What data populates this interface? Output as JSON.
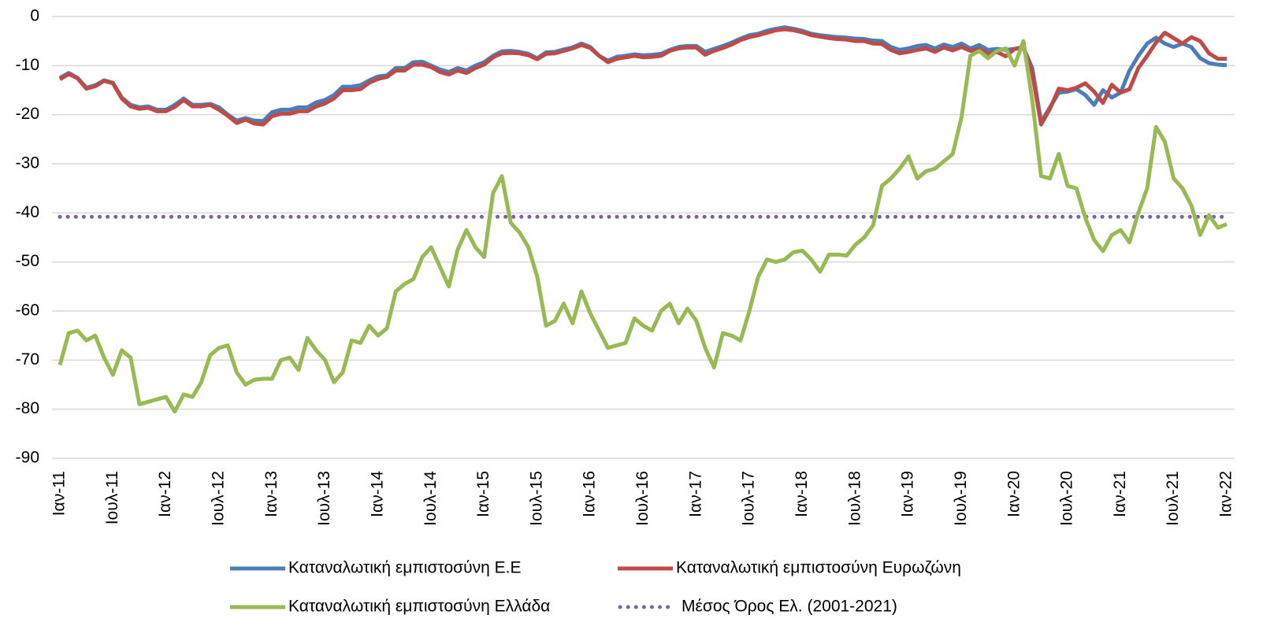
{
  "chart_data": {
    "type": "line",
    "categories": [
      "Ιαν-11",
      null,
      null,
      null,
      null,
      null,
      "Ιουλ-11",
      null,
      null,
      null,
      null,
      null,
      "Ιαν-12",
      null,
      null,
      null,
      null,
      null,
      "Ιουλ-12",
      null,
      null,
      null,
      null,
      null,
      "Ιαν-13",
      null,
      null,
      null,
      null,
      null,
      "Ιουλ-13",
      null,
      null,
      null,
      null,
      null,
      "Ιαν-14",
      null,
      null,
      null,
      null,
      null,
      "Ιουλ-14",
      null,
      null,
      null,
      null,
      null,
      "Ιαν-15",
      null,
      null,
      null,
      null,
      null,
      "Ιουλ-15",
      null,
      null,
      null,
      null,
      null,
      "Ιαν-16",
      null,
      null,
      null,
      null,
      null,
      "Ιουλ-16",
      null,
      null,
      null,
      null,
      null,
      "Ιαν-17",
      null,
      null,
      null,
      null,
      null,
      "Ιουλ-17",
      null,
      null,
      null,
      null,
      null,
      "Ιαν-18",
      null,
      null,
      null,
      null,
      null,
      "Ιουλ-18",
      null,
      null,
      null,
      null,
      null,
      "Ιαν-19",
      null,
      null,
      null,
      null,
      null,
      "Ιουλ-19",
      null,
      null,
      null,
      null,
      null,
      "Ιαν-20",
      null,
      null,
      null,
      null,
      null,
      "Ιουλ-20",
      null,
      null,
      null,
      null,
      null,
      "Ιαν-21",
      null,
      null,
      null,
      null,
      null,
      "Ιουλ-21",
      null,
      null,
      null,
      null,
      null,
      "Ιαν-22"
    ],
    "series": [
      {
        "name": "Καταναλωτική εμπιστοσύνη Ε.Ε",
        "color": "#4a7ebb",
        "values": [
          -12.5,
          -11.5,
          -12.5,
          -14.5,
          -14,
          -13,
          -13.5,
          -16.5,
          -18,
          -18.5,
          -18.3,
          -19,
          -19,
          -18,
          -16.7,
          -18,
          -18,
          -17.8,
          -18.5,
          -20,
          -21.2,
          -20.7,
          -21.2,
          -21.3,
          -19.5,
          -19,
          -19,
          -18.5,
          -18.5,
          -17.5,
          -17,
          -16,
          -14.3,
          -14.3,
          -14,
          -13,
          -12.2,
          -12,
          -10.5,
          -10.5,
          -9.3,
          -9.2,
          -10,
          -10.8,
          -11.3,
          -10.5,
          -11,
          -10,
          -9.3,
          -8,
          -7.1,
          -7,
          -7.2,
          -7.6,
          -8.5,
          -7.3,
          -7.2,
          -6.7,
          -6.3,
          -5.5,
          -6.2,
          -8,
          -9,
          -8.2,
          -8,
          -7.7,
          -7.9,
          -7.8,
          -7.6,
          -6.8,
          -6.2,
          -6,
          -6,
          -7.2,
          -6.6,
          -6,
          -5.3,
          -4.5,
          -3.8,
          -3.5,
          -2.9,
          -2.5,
          -2.2,
          -2.5,
          -2.9,
          -3.5,
          -3.8,
          -4,
          -4.2,
          -4.3,
          -4.5,
          -4.6,
          -4.9,
          -5,
          -6.2,
          -6.8,
          -6.5,
          -6,
          -5.8,
          -6.5,
          -5.7,
          -6.2,
          -5.5,
          -6.5,
          -5.8,
          -6.8,
          -6.6,
          -6.8,
          -6.6,
          -6.3,
          -10.5,
          -21.5,
          -18.5,
          -15.5,
          -15.3,
          -14.8,
          -16,
          -18,
          -15,
          -16.5,
          -15.5,
          -11,
          -8,
          -5.5,
          -4.3,
          -5.5,
          -6.2,
          -5.5,
          -6.2,
          -8.5,
          -9.5,
          -9.8,
          -9.9
        ]
      },
      {
        "name": "Καταναλωτική εμπιστοσύνη Ευρωζώνη",
        "color": "#be4b48",
        "values": [
          -12.8,
          -11.7,
          -12.6,
          -14.7,
          -14.2,
          -13.1,
          -13.6,
          -16.7,
          -18.3,
          -18.8,
          -18.6,
          -19.3,
          -19.3,
          -18.4,
          -17,
          -18.3,
          -18.3,
          -18,
          -19,
          -20.2,
          -21.7,
          -21,
          -21.8,
          -22,
          -20.3,
          -19.8,
          -19.8,
          -19.3,
          -19.3,
          -18.3,
          -17.7,
          -16.7,
          -15,
          -15,
          -14.8,
          -13.5,
          -12.7,
          -12.3,
          -11,
          -11,
          -9.8,
          -9.8,
          -10.3,
          -11.3,
          -11.8,
          -11,
          -11.5,
          -10.5,
          -9.8,
          -8.3,
          -7.5,
          -7.4,
          -7.5,
          -7.9,
          -8.7,
          -7.6,
          -7.5,
          -7,
          -6.5,
          -5.8,
          -6.4,
          -8,
          -9.3,
          -8.6,
          -8.3,
          -8,
          -8.3,
          -8.2,
          -8,
          -7,
          -6.5,
          -6.3,
          -6.3,
          -7.8,
          -7,
          -6.4,
          -5.7,
          -4.8,
          -4.2,
          -3.8,
          -3.3,
          -2.8,
          -2.6,
          -2.8,
          -3.2,
          -3.8,
          -4.1,
          -4.4,
          -4.6,
          -4.7,
          -5,
          -5,
          -5.5,
          -5.6,
          -6.8,
          -7.5,
          -7.2,
          -6.8,
          -6.5,
          -7.2,
          -6.3,
          -6.9,
          -6.2,
          -7,
          -6.6,
          -7.6,
          -7.2,
          -8.1,
          -6.6,
          -6.2,
          -11.5,
          -22,
          -18.8,
          -14.7,
          -15,
          -14.5,
          -13.6,
          -15.3,
          -17.6,
          -13.9,
          -15.5,
          -14.8,
          -10.5,
          -8,
          -5.3,
          -3.3,
          -4.4,
          -5.5,
          -4.2,
          -5,
          -7.5,
          -8.6,
          -8.6
        ]
      },
      {
        "name": "Καταναλωτική εμπιστοσύνη Ελλάδα",
        "color": "#98b954",
        "values": [
          -71,
          -64.5,
          -64,
          -66,
          -65,
          -69.5,
          -73,
          -68,
          -69.5,
          -79,
          -78.5,
          -78,
          -77.5,
          -80.5,
          -77,
          -77.5,
          -74.5,
          -69,
          -67.5,
          -67,
          -72.5,
          -75,
          -74,
          -73.8,
          -73.8,
          -70,
          -69.5,
          -72,
          -65.5,
          -68,
          -70,
          -74.5,
          -72.5,
          -66,
          -66.5,
          -63,
          -65,
          -63.5,
          -56,
          -54.5,
          -53.5,
          -49,
          -47,
          -51,
          -55,
          -47.5,
          -43.5,
          -47,
          -49,
          -36,
          -32.5,
          -42,
          -44,
          -47,
          -53,
          -63,
          -62,
          -58.5,
          -62.5,
          -56,
          -60.5,
          -64,
          -67.5,
          -67,
          -66.5,
          -61.5,
          -63,
          -64,
          -60,
          -58.5,
          -62.5,
          -59.5,
          -62,
          -67.5,
          -71.5,
          -64.5,
          -65,
          -66,
          -60,
          -53,
          -49.5,
          -50,
          -49.5,
          -48,
          -47.7,
          -49.5,
          -52,
          -48.5,
          -48.5,
          -48.7,
          -46.5,
          -45,
          -42.5,
          -34.5,
          -33,
          -31,
          -28.5,
          -33,
          -31.5,
          -31,
          -29.5,
          -28,
          -20.5,
          -8,
          -7,
          -8.5,
          -7,
          -6.5,
          -10,
          -5,
          -17,
          -32.5,
          -33,
          -28,
          -34.5,
          -35,
          -41,
          -45.5,
          -47.8,
          -44.5,
          -43.5,
          -46,
          -40,
          -35,
          -22.5,
          -25.5,
          -33,
          -35,
          -38.5,
          -44.5,
          -40.5,
          -43,
          -42.3
        ]
      }
    ],
    "hlines": [
      {
        "name": "Μέσος Όρος Ελ. (2001-2021)",
        "color": "#7f63a1",
        "value": -40.8,
        "style": "dotted"
      }
    ],
    "ylim": [
      -90,
      0
    ],
    "yticks": [
      0,
      -10,
      -20,
      -30,
      -40,
      -50,
      -60,
      -70,
      -80,
      -90
    ],
    "grid": true
  }
}
